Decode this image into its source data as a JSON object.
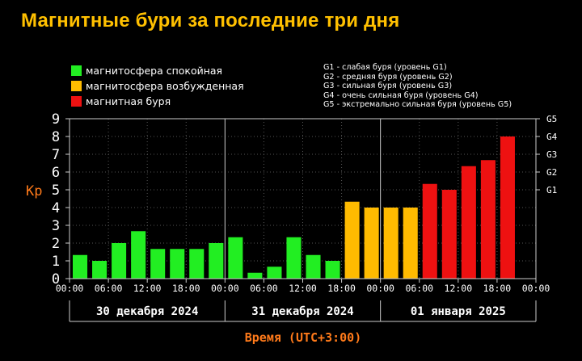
{
  "title": "Магнитные бури за последние три дня",
  "legend": [
    {
      "label": "магнитосфера спокойная",
      "color": "#22ee22"
    },
    {
      "label": "магнитосфера возбужденная",
      "color": "#ffbb00"
    },
    {
      "label": "магнитная буря",
      "color": "#ee1111"
    }
  ],
  "storm_levels": [
    "G1 - слабая буря (уровень G1)",
    "G2 - средняя буря (уровень G2)",
    "G3 - сильная буря (уровень G3)",
    "G4 - очень сильная буря (уровень G4)",
    "G5 - экстремально сильная буря (уровень G5)"
  ],
  "chart_data": {
    "type": "bar",
    "ylabel": "Kp",
    "xlabel": "Время (UTC+3:00)",
    "ylim": [
      0,
      9
    ],
    "y_ticks": [
      "0",
      "1",
      "2",
      "3",
      "4",
      "5",
      "6",
      "7",
      "8",
      "9"
    ],
    "right_ticks": [
      {
        "label": "G1",
        "kp": 5
      },
      {
        "label": "G2",
        "kp": 6
      },
      {
        "label": "G3",
        "kp": 7
      },
      {
        "label": "G4",
        "kp": 8
      },
      {
        "label": "G5",
        "kp": 9
      }
    ],
    "x_ticks": [
      "00:00",
      "06:00",
      "12:00",
      "18:00",
      "00:00",
      "06:00",
      "12:00",
      "18:00",
      "00:00",
      "06:00",
      "12:00",
      "18:00",
      "00:00"
    ],
    "days": [
      "30 декабря 2024",
      "31 декабря 2024",
      "01 января 2025"
    ],
    "bars": [
      {
        "day": 0,
        "slot": 0,
        "value": 1.33,
        "level": "quiet"
      },
      {
        "day": 0,
        "slot": 1,
        "value": 1.0,
        "level": "quiet"
      },
      {
        "day": 0,
        "slot": 2,
        "value": 2.0,
        "level": "quiet"
      },
      {
        "day": 0,
        "slot": 3,
        "value": 2.67,
        "level": "quiet"
      },
      {
        "day": 0,
        "slot": 4,
        "value": 1.67,
        "level": "quiet"
      },
      {
        "day": 0,
        "slot": 5,
        "value": 1.67,
        "level": "quiet"
      },
      {
        "day": 0,
        "slot": 6,
        "value": 1.67,
        "level": "quiet"
      },
      {
        "day": 0,
        "slot": 7,
        "value": 2.0,
        "level": "quiet"
      },
      {
        "day": 1,
        "slot": 0,
        "value": 2.33,
        "level": "quiet"
      },
      {
        "day": 1,
        "slot": 1,
        "value": 0.33,
        "level": "quiet"
      },
      {
        "day": 1,
        "slot": 2,
        "value": 0.67,
        "level": "quiet"
      },
      {
        "day": 1,
        "slot": 3,
        "value": 2.33,
        "level": "quiet"
      },
      {
        "day": 1,
        "slot": 4,
        "value": 1.33,
        "level": "quiet"
      },
      {
        "day": 1,
        "slot": 5,
        "value": 1.0,
        "level": "quiet"
      },
      {
        "day": 1,
        "slot": 6,
        "value": 4.33,
        "level": "active"
      },
      {
        "day": 1,
        "slot": 7,
        "value": 4.0,
        "level": "active"
      },
      {
        "day": 2,
        "slot": 0,
        "value": 4.0,
        "level": "active"
      },
      {
        "day": 2,
        "slot": 1,
        "value": 4.0,
        "level": "active"
      },
      {
        "day": 2,
        "slot": 2,
        "value": 5.33,
        "level": "storm"
      },
      {
        "day": 2,
        "slot": 3,
        "value": 5.0,
        "level": "storm"
      },
      {
        "day": 2,
        "slot": 4,
        "value": 6.33,
        "level": "storm"
      },
      {
        "day": 2,
        "slot": 5,
        "value": 6.67,
        "level": "storm"
      },
      {
        "day": 2,
        "slot": 6,
        "value": 8.0,
        "level": "storm"
      }
    ],
    "level_colors": {
      "quiet": "#22ee22",
      "active": "#ffbb00",
      "storm": "#ee1111"
    },
    "grid": true
  }
}
